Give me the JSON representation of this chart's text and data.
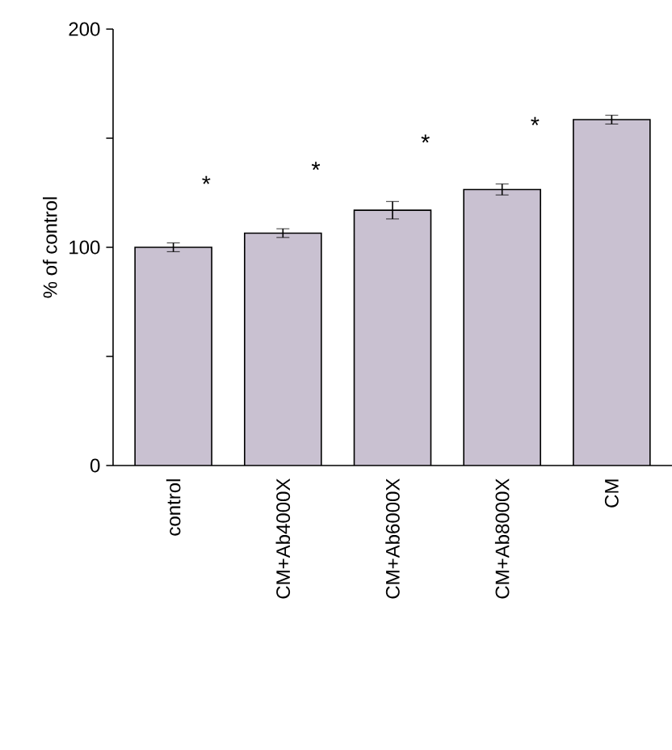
{
  "chart_data": {
    "type": "bar",
    "ylabel": "% of control",
    "categories": [
      "control",
      "CM+Ab4000X",
      "CM+Ab6000X",
      "CM+Ab8000X",
      "CM"
    ],
    "values": [
      100,
      106.5,
      117,
      126.5,
      158.5
    ],
    "errors": [
      2,
      2,
      4,
      2.5,
      2
    ],
    "color": "#c9c1d1",
    "ylim": [
      0,
      200
    ],
    "yticks": [
      0,
      {
        "value": 50,
        "label": null
      },
      100,
      {
        "value": 150,
        "label": null
      },
      200
    ],
    "grid": false,
    "annotations": [
      "*",
      "*",
      "*",
      "*"
    ]
  }
}
